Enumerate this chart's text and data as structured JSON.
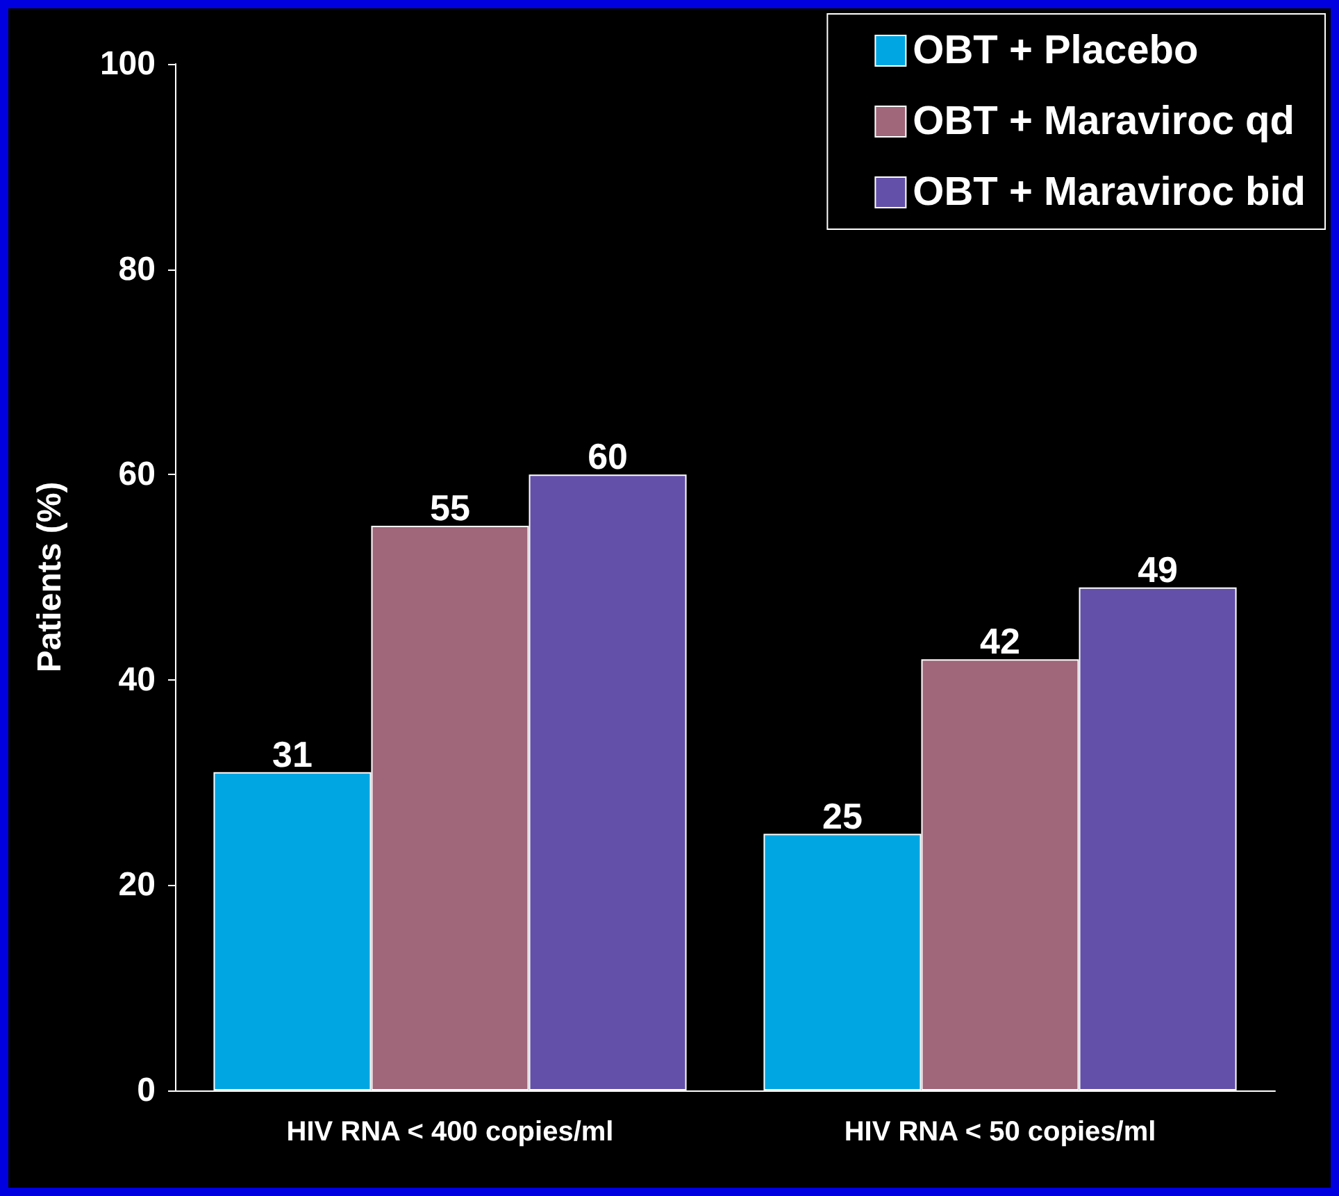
{
  "chart_data": {
    "type": "bar",
    "categories": [
      "HIV RNA < 400 copies/ml",
      "HIV RNA < 50 copies/ml"
    ],
    "ylabel": "Patients (%)",
    "ylim": [
      0,
      100
    ],
    "yticks": [
      0,
      20,
      40,
      60,
      80,
      100
    ],
    "grid": false,
    "legend": "top right",
    "data_labels": true,
    "series": [
      {
        "name": "OBT + Placebo",
        "color": "#00a6e2",
        "values": [
          31,
          25
        ]
      },
      {
        "name": "OBT + Maraviroc qd",
        "color": "#a0667a",
        "values": [
          55,
          42
        ]
      },
      {
        "name": "OBT + Maraviroc bid",
        "color": "#6350a8",
        "values": [
          60,
          49
        ]
      }
    ]
  }
}
